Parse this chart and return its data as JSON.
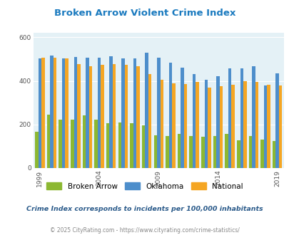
{
  "title": "Broken Arrow Violent Crime Index",
  "years": [
    1999,
    2000,
    2001,
    2002,
    2003,
    2004,
    2005,
    2006,
    2007,
    2008,
    2009,
    2010,
    2011,
    2012,
    2013,
    2014,
    2015,
    2016,
    2017,
    2018,
    2019
  ],
  "broken_arrow": [
    168,
    245,
    222,
    222,
    242,
    222,
    206,
    210,
    205,
    195,
    150,
    148,
    158,
    148,
    145,
    148,
    158,
    127,
    148,
    130,
    125
  ],
  "oklahoma": [
    502,
    517,
    502,
    508,
    505,
    505,
    512,
    502,
    502,
    530,
    505,
    482,
    460,
    430,
    405,
    420,
    457,
    457,
    468,
    380,
    433
  ],
  "national": [
    506,
    506,
    504,
    477,
    466,
    472,
    476,
    474,
    466,
    430,
    405,
    390,
    387,
    395,
    370,
    374,
    383,
    399,
    396,
    383,
    379
  ],
  "bar_colors": {
    "broken_arrow": "#8cb832",
    "oklahoma": "#4d8ecb",
    "national": "#f5a623"
  },
  "plot_bg": "#e4f1f6",
  "ylim": [
    0,
    620
  ],
  "yticks": [
    0,
    200,
    400,
    600
  ],
  "xlabel_ticks": [
    1999,
    2004,
    2009,
    2014,
    2019
  ],
  "subtitle": "Crime Index corresponds to incidents per 100,000 inhabitants",
  "footer": "© 2025 CityRating.com - https://www.cityrating.com/crime-statistics/",
  "legend_labels": [
    "Broken Arrow",
    "Oklahoma",
    "National"
  ],
  "title_color": "#1a7abf",
  "subtitle_color": "#2a5a8a",
  "footer_color": "#888888"
}
